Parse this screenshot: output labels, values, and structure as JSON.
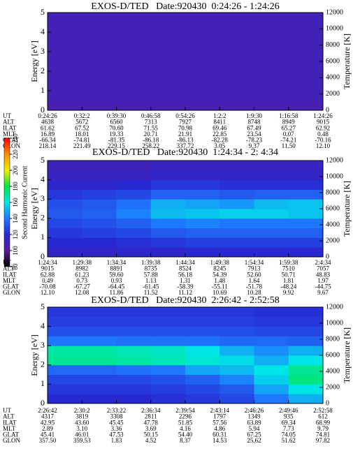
{
  "chart_data": [
    {
      "type": "heatmap",
      "title": "EXOS-D/TED   Date:920430  0:24:26 - 1:24:26",
      "ylabel": "Energy [eV]",
      "y2label": "Temperature [K]",
      "ylim": [
        0,
        5
      ],
      "yticks": [
        0,
        1,
        2,
        3,
        4,
        5
      ],
      "y2lim": [
        0,
        12000
      ],
      "y2ticks": [
        0,
        2000,
        4000,
        6000,
        8000,
        10000,
        12000
      ],
      "z": [
        [
          108,
          108,
          108,
          108,
          108,
          108,
          108,
          108
        ],
        [
          110,
          110,
          110,
          110,
          110,
          110,
          110,
          110
        ],
        [
          110,
          110,
          110,
          110,
          110,
          110,
          110,
          110
        ],
        [
          110,
          110,
          110,
          110,
          110,
          110,
          110,
          110
        ],
        [
          110,
          110,
          110,
          110,
          110,
          110,
          110,
          110
        ],
        [
          110,
          110,
          110,
          110,
          110,
          110,
          110,
          110
        ],
        [
          110,
          110,
          110,
          110,
          110,
          110,
          110,
          110
        ],
        [
          110,
          110,
          110,
          110,
          110,
          110,
          110,
          110
        ],
        [
          110,
          110,
          110,
          110,
          110,
          110,
          110,
          110
        ],
        [
          110,
          110,
          110,
          110,
          110,
          110,
          110,
          110
        ]
      ],
      "x_table": {
        "row_labels": [
          "UT",
          "ALT",
          "ILAT",
          "MLT",
          "GLAT",
          "GLON"
        ],
        "rows": [
          [
            "0:24:26",
            "0:32:2",
            "0:39:30",
            "0:46:58",
            "0:54:26",
            "1:2:2",
            "1:9:30",
            "1:16:58",
            "1:24:26"
          ],
          [
            "4638",
            "5672",
            "6560",
            "7313",
            "7927",
            "8411",
            "8748",
            "8949",
            "9015"
          ],
          [
            "61.62",
            "67.52",
            "70.60",
            "71.55",
            "70.98",
            "69.46",
            "67.49",
            "65.27",
            "62.92"
          ],
          [
            "16.89",
            "18.01",
            "19.33",
            "20.71",
            "21.91",
            "22.85",
            "23.54",
            "0.07",
            "0.48"
          ],
          [
            "-66.34",
            "-74.81",
            "-81.35",
            "-86.18",
            "-86.13",
            "-82.28",
            "-78.23",
            "-74.21",
            "-70.16"
          ],
          [
            "218.14",
            "221.49",
            "229.15",
            "258.22",
            "337.72",
            "3.05",
            "9.37",
            "11.50",
            "12.10"
          ]
        ]
      }
    },
    {
      "type": "heatmap",
      "title": "EXOS-D/TED   Date:920430  1:24:34 - 2: 4:34",
      "ylabel": "Energy [eV]",
      "y2label": "Temperature [K]",
      "ylim": [
        0,
        5
      ],
      "yticks": [
        0,
        1,
        2,
        3,
        4,
        5
      ],
      "y2lim": [
        0,
        12000
      ],
      "y2ticks": [
        0,
        2000,
        4000,
        6000,
        8000,
        10000,
        12000
      ],
      "z": [
        [
          116,
          116,
          118,
          118,
          120,
          120,
          120,
          120
        ],
        [
          120,
          120,
          122,
          124,
          126,
          126,
          126,
          126
        ],
        [
          124,
          126,
          128,
          132,
          134,
          134,
          134,
          134
        ],
        [
          128,
          130,
          134,
          140,
          142,
          140,
          140,
          140
        ],
        [
          132,
          134,
          142,
          152,
          154,
          156,
          156,
          154
        ],
        [
          130,
          132,
          138,
          150,
          148,
          146,
          152,
          154
        ],
        [
          124,
          126,
          128,
          134,
          134,
          132,
          134,
          134
        ],
        [
          118,
          118,
          120,
          124,
          124,
          122,
          122,
          122
        ],
        [
          114,
          114,
          114,
          116,
          116,
          116,
          116,
          116
        ],
        [
          112,
          112,
          112,
          114,
          114,
          114,
          114,
          114
        ]
      ],
      "colorbar": {
        "label": "Second Harmonic Current",
        "lim": [
          80,
          240
        ],
        "ticks": [
          80,
          100,
          120,
          140,
          160,
          180,
          200,
          220,
          240
        ],
        "colormap": [
          "#000000",
          "#5c1a9c",
          "#2828d0",
          "#1e78ff",
          "#00e6e6",
          "#00e640",
          "#f0f000",
          "#ff8c00",
          "#ff0000"
        ]
      },
      "x_table": {
        "row_labels": [
          "UT",
          "ALT",
          "ILAT",
          "MLT",
          "GLAT",
          "GLON"
        ],
        "rows": [
          [
            "1:24:34",
            "1:29:38",
            "1:34:34",
            "1:39:38",
            "1:44:34",
            "1:49:38",
            "1:54:34",
            "1:59:38",
            "2:4:34"
          ],
          [
            "9015",
            "8982",
            "8891",
            "8735",
            "8524",
            "8245",
            "7913",
            "7510",
            "7057"
          ],
          [
            "62.88",
            "61.23",
            "59.60",
            "57.88",
            "56.18",
            "54.39",
            "52.60",
            "50.71",
            "48.83"
          ],
          [
            "0.49",
            "0.73",
            "0.93",
            "1.13",
            "1.31",
            "1.48",
            "1.64",
            "1.81",
            "1.97"
          ],
          [
            "-70.08",
            "-67.27",
            "-64.45",
            "-61.45",
            "-58.39",
            "-55.11",
            "-51.78",
            "-48.24",
            "-44.75"
          ],
          [
            "12.10",
            "12.08",
            "11.86",
            "11.52",
            "11.12",
            "10.69",
            "10.28",
            "9.92",
            "9.67"
          ]
        ]
      }
    },
    {
      "type": "heatmap",
      "title": "EXOS-D/TED   Date:920430  2:26:42 - 2:52:58",
      "ylabel": "Energy [eV]",
      "y2label": "Temperature [K]",
      "ylim": [
        0,
        5
      ],
      "yticks": [
        0,
        1,
        2,
        3,
        4,
        5
      ],
      "y2lim": [
        0,
        12000
      ],
      "y2ticks": [
        0,
        2000,
        4000,
        6000,
        8000,
        10000,
        12000
      ],
      "z": [
        [
          120,
          120,
          120,
          122,
          124,
          128,
          140,
          150
        ],
        [
          124,
          124,
          124,
          126,
          128,
          132,
          148,
          160
        ],
        [
          128,
          128,
          128,
          130,
          134,
          142,
          156,
          172
        ],
        [
          136,
          136,
          138,
          140,
          148,
          152,
          160,
          170
        ],
        [
          170,
          170,
          168,
          166,
          162,
          158,
          150,
          160
        ],
        [
          168,
          168,
          166,
          164,
          160,
          150,
          144,
          150
        ],
        [
          140,
          140,
          138,
          138,
          138,
          136,
          136,
          134
        ],
        [
          130,
          130,
          130,
          130,
          130,
          130,
          128,
          128
        ],
        [
          126,
          126,
          126,
          126,
          126,
          126,
          124,
          124
        ],
        [
          124,
          124,
          124,
          124,
          124,
          124,
          122,
          122
        ]
      ],
      "x_table": {
        "row_labels": [
          "UT",
          "ALT",
          "ILAT",
          "MLT",
          "GLAT",
          "GLON"
        ],
        "rows": [
          [
            "2:26:42",
            "2:30:2",
            "2:33:22",
            "2:36:34",
            "2:39:54",
            "2:43:14",
            "2:46:26",
            "2:49:46",
            "2:52:58"
          ],
          [
            "4317",
            "3819",
            "3308",
            "2811",
            "2296",
            "1797",
            "1349",
            "935",
            "612"
          ],
          [
            "42.95",
            "43.60",
            "45.45",
            "47.78",
            "51.85",
            "57.56",
            "63.89",
            "69.34",
            "68.99"
          ],
          [
            "2.89",
            "3.10",
            "3.36",
            "3.69",
            "4.16",
            "4.86",
            "5.94",
            "7.73",
            "9.79"
          ],
          [
            "45.41",
            "46.01",
            "47.53",
            "50.15",
            "54.40",
            "60.31",
            "67.25",
            "74.05",
            "74.81"
          ],
          [
            "357.50",
            "359.53",
            "1.83",
            "4.52",
            "8.37",
            "14.53",
            "25.62",
            "51.62",
            "97.82"
          ]
        ]
      }
    }
  ]
}
